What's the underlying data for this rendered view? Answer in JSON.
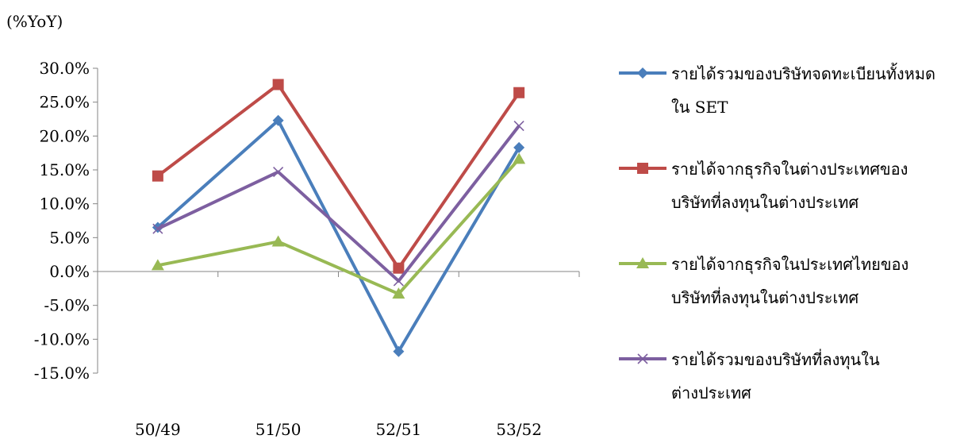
{
  "chart_data": {
    "type": "line",
    "ylabel": "(%YoY)",
    "categories": [
      "50/49",
      "51/50",
      "52/51",
      "53/52"
    ],
    "ylim": [
      -15,
      30
    ],
    "yticks": [
      "30.0%",
      "25.0%",
      "20.0%",
      "15.0%",
      "10.0%",
      "5.0%",
      "0.0%",
      "-5.0%",
      "-10.0%",
      "-15.0%"
    ],
    "ytick_values": [
      30,
      25,
      20,
      15,
      10,
      5,
      0,
      -5,
      -10,
      -15
    ],
    "grid": false,
    "legend_position": "right",
    "series": [
      {
        "name": "รายได้รวมของบริษัทจดทะเบียนทั้งหมด\nใน SET",
        "color": "#4a7ebb",
        "marker": "diamond",
        "values": [
          6.5,
          22.3,
          -11.8,
          18.3
        ]
      },
      {
        "name": "รายได้จากธุรกิจในต่างประเทศของ\nบริษัทที่ลงทุนในต่างประเทศ",
        "color": "#be4b48",
        "marker": "square",
        "values": [
          14.1,
          27.6,
          0.5,
          26.4
        ]
      },
      {
        "name": "รายได้จากธุรกิจในประเทศไทยของ\nบริษัทที่ลงทุนในต่างประเทศ",
        "color": "#98b954",
        "marker": "triangle",
        "values": [
          0.9,
          4.4,
          -3.3,
          16.6
        ]
      },
      {
        "name": "รายได้รวมของบริษัทที่ลงทุนใน\nต่างประเทศ",
        "color": "#7d5fa0",
        "marker": "x",
        "values": [
          6.3,
          14.7,
          -1.4,
          21.5
        ]
      }
    ]
  }
}
